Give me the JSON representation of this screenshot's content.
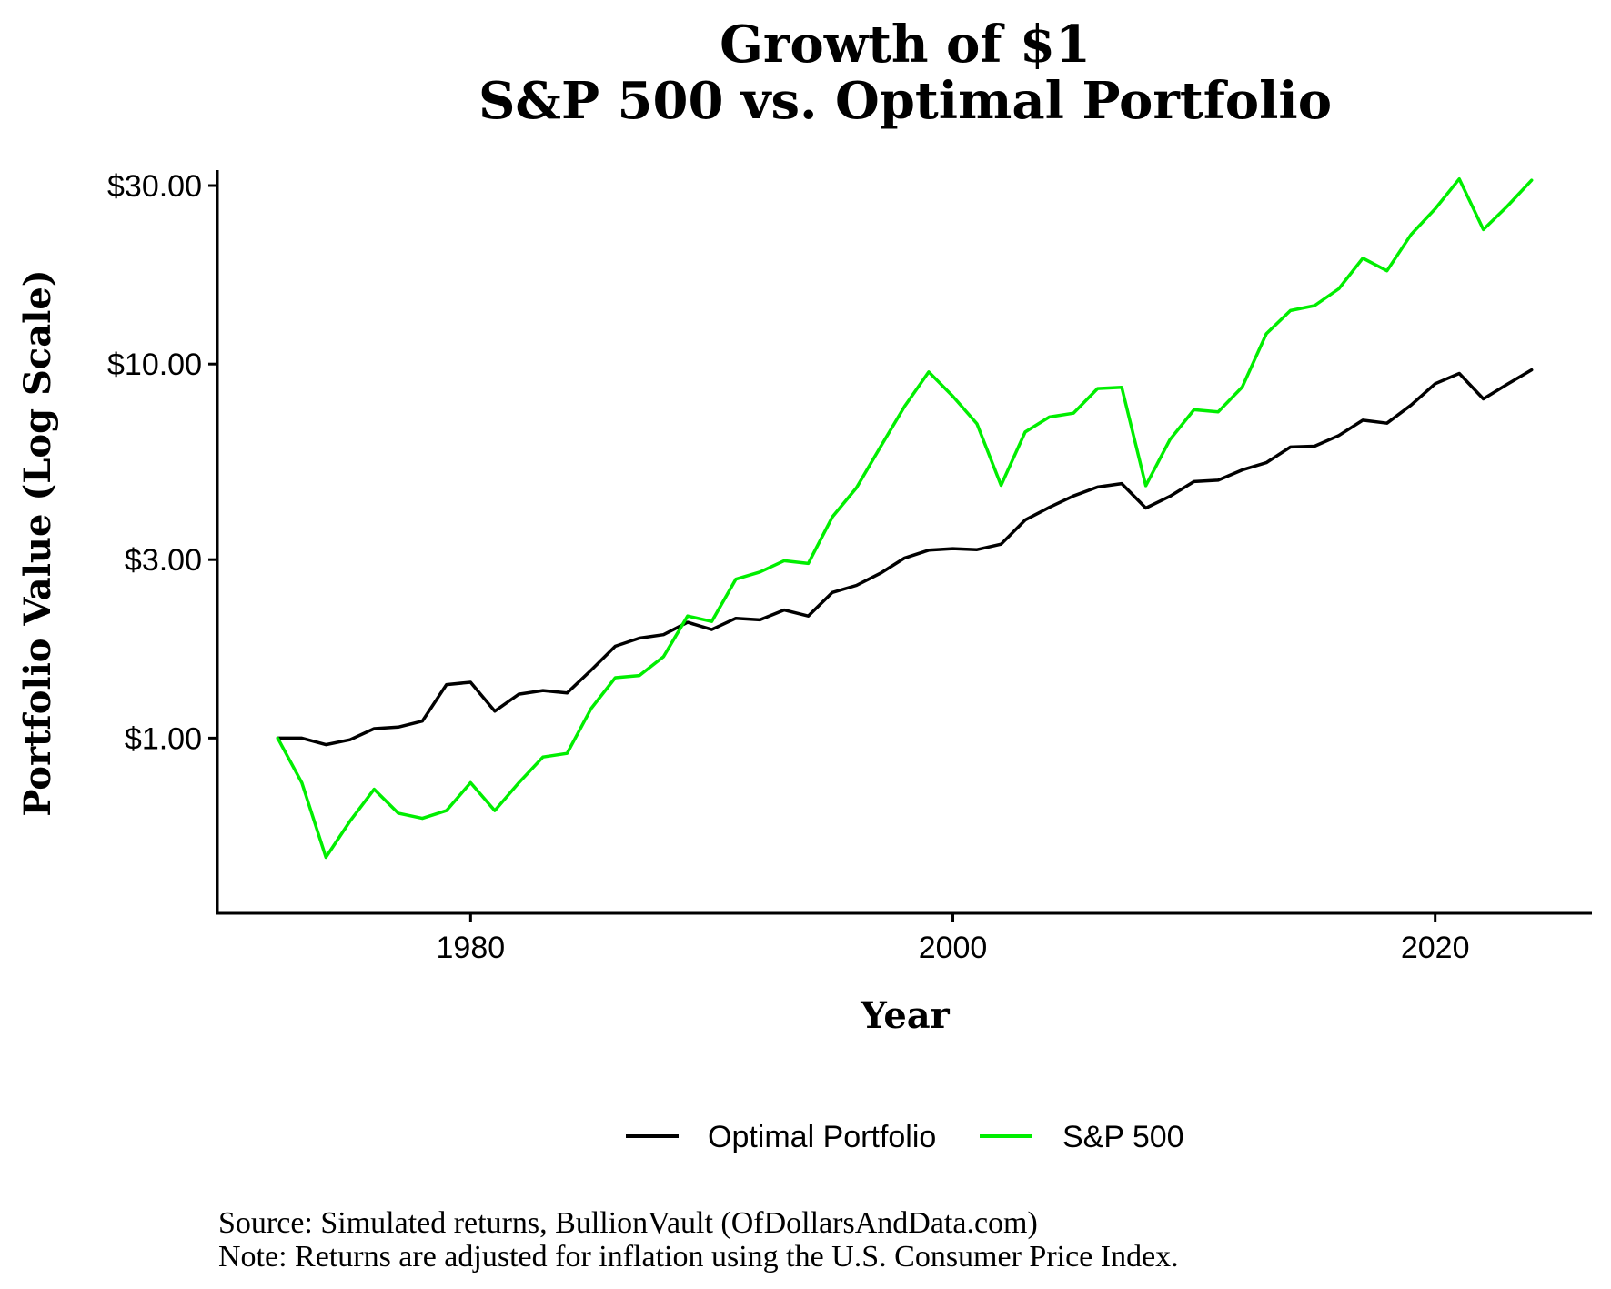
{
  "chart_data": {
    "type": "line",
    "title": [
      "Growth of $1",
      "S&P 500 vs. Optimal Portfolio"
    ],
    "xlabel": "Year",
    "ylabel": "Portfolio Value (Log Scale)",
    "y_scale": "log",
    "xlim": [
      1969.5,
      2026.5
    ],
    "ylim": [
      0.34,
      33
    ],
    "x_ticks": [
      1980,
      2000,
      2020
    ],
    "x_tick_labels": [
      "1980",
      "2000",
      "2020"
    ],
    "y_ticks": [
      1,
      3,
      10,
      30
    ],
    "y_tick_labels": [
      "$1.00",
      "$3.00",
      "$10.00",
      "$30.00"
    ],
    "grid": false,
    "legend_position": "bottom",
    "x": [
      1972,
      1973,
      1974,
      1975,
      1976,
      1977,
      1978,
      1979,
      1980,
      1981,
      1982,
      1983,
      1984,
      1985,
      1986,
      1987,
      1988,
      1989,
      1990,
      1991,
      1992,
      1993,
      1994,
      1995,
      1996,
      1997,
      1998,
      1999,
      2000,
      2001,
      2002,
      2003,
      2004,
      2005,
      2006,
      2007,
      2008,
      2009,
      2010,
      2011,
      2012,
      2013,
      2014,
      2015,
      2016,
      2017,
      2018,
      2019,
      2020,
      2021,
      2022,
      2023,
      2024
    ],
    "series": [
      {
        "name": "Optimal Portfolio",
        "color": "#000000",
        "values": [
          1.0,
          1.0,
          0.96,
          0.99,
          1.06,
          1.07,
          1.11,
          1.39,
          1.41,
          1.18,
          1.31,
          1.34,
          1.32,
          1.52,
          1.76,
          1.85,
          1.89,
          2.04,
          1.95,
          2.09,
          2.07,
          2.2,
          2.12,
          2.45,
          2.56,
          2.76,
          3.03,
          3.18,
          3.21,
          3.19,
          3.3,
          3.83,
          4.14,
          4.44,
          4.69,
          4.79,
          4.12,
          4.43,
          4.85,
          4.89,
          5.21,
          5.45,
          6.0,
          6.03,
          6.44,
          7.08,
          6.95,
          7.77,
          8.86,
          9.44,
          8.07,
          8.84,
          9.65
        ]
      },
      {
        "name": "S&P 500",
        "color": "#00ee00",
        "values": [
          1.0,
          0.76,
          0.48,
          0.6,
          0.73,
          0.63,
          0.61,
          0.64,
          0.76,
          0.64,
          0.76,
          0.89,
          0.91,
          1.2,
          1.45,
          1.47,
          1.65,
          2.12,
          2.05,
          2.66,
          2.78,
          2.98,
          2.93,
          3.9,
          4.67,
          6.01,
          7.71,
          9.53,
          8.2,
          6.92,
          4.74,
          6.58,
          7.22,
          7.39,
          8.6,
          8.67,
          4.73,
          6.28,
          7.55,
          7.45,
          8.68,
          12.05,
          13.9,
          14.33,
          15.89,
          19.19,
          17.75,
          22.2,
          25.99,
          31.25,
          22.88,
          26.45,
          31.0
        ]
      }
    ]
  },
  "footnotes": {
    "source": "Source:  Simulated returns, BullionVault (OfDollarsAndData.com)",
    "note": "Note:  Returns are adjusted for inflation using the U.S. Consumer Price Index."
  }
}
